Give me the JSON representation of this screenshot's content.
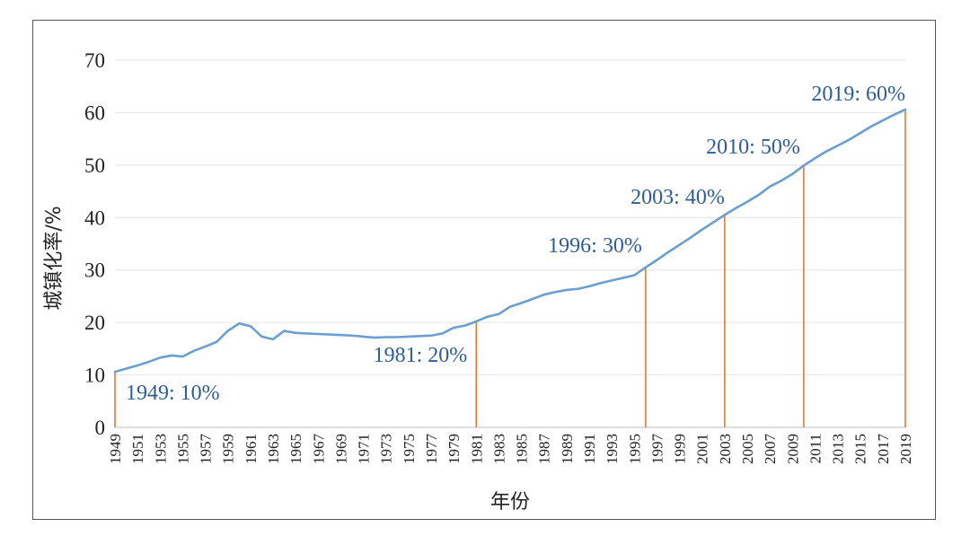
{
  "chart_data": {
    "type": "line",
    "xlabel": "年份",
    "ylabel": "城镇化率/%",
    "ylim": [
      0,
      70
    ],
    "yticks": [
      "0",
      "10",
      "20",
      "30",
      "40",
      "50",
      "60",
      "70"
    ],
    "xtick_labels": [
      "1949",
      "1951",
      "1953",
      "1955",
      "1957",
      "1959",
      "1961",
      "1963",
      "1965",
      "1967",
      "1969",
      "1971",
      "1973",
      "1975",
      "1977",
      "1979",
      "1981",
      "1983",
      "1985",
      "1987",
      "1989",
      "1991",
      "1993",
      "1995",
      "1997",
      "1999",
      "2001",
      "2003",
      "2005",
      "2007",
      "2009",
      "2011",
      "2013",
      "2015",
      "2017",
      "2019"
    ],
    "grid": "horizontal",
    "colors": {
      "line": "#6a9fd0",
      "marker": "#e07b39",
      "annotation": "#2e5c96",
      "grid": "#e3e3e3"
    },
    "series": [
      {
        "x": [
          1949,
          1950,
          1951,
          1952,
          1953,
          1954,
          1955,
          1956,
          1957,
          1958,
          1959,
          1960,
          1961,
          1962,
          1963,
          1964,
          1965,
          1966,
          1967,
          1968,
          1969,
          1970,
          1971,
          1972,
          1973,
          1974,
          1975,
          1976,
          1977,
          1978,
          1979,
          1980,
          1981,
          1982,
          1983,
          1984,
          1985,
          1986,
          1987,
          1988,
          1989,
          1990,
          1991,
          1992,
          1993,
          1994,
          1995,
          1996,
          1997,
          1998,
          1999,
          2000,
          2001,
          2002,
          2003,
          2004,
          2005,
          2006,
          2007,
          2008,
          2009,
          2010,
          2011,
          2012,
          2013,
          2014,
          2015,
          2016,
          2017,
          2018,
          2019
        ],
        "values": [
          10.6,
          11.2,
          11.8,
          12.5,
          13.3,
          13.7,
          13.5,
          14.6,
          15.4,
          16.3,
          18.4,
          19.8,
          19.3,
          17.3,
          16.8,
          18.4,
          18.0,
          17.9,
          17.8,
          17.7,
          17.6,
          17.5,
          17.3,
          17.1,
          17.2,
          17.2,
          17.3,
          17.4,
          17.5,
          17.9,
          19.0,
          19.4,
          20.2,
          21.1,
          21.6,
          23.0,
          23.7,
          24.5,
          25.3,
          25.8,
          26.2,
          26.4,
          26.9,
          27.5,
          28.0,
          28.5,
          29.0,
          30.5,
          31.9,
          33.4,
          34.8,
          36.2,
          37.7,
          39.1,
          40.5,
          41.8,
          43.0,
          44.3,
          45.9,
          47.0,
          48.3,
          49.9,
          51.3,
          52.6,
          53.7,
          54.8,
          56.1,
          57.4,
          58.5,
          59.6,
          60.6
        ]
      }
    ],
    "markers": [
      {
        "x": 1949,
        "value": 10,
        "label": "1949: 10%"
      },
      {
        "x": 1981,
        "value": 20,
        "label": "1981: 20%"
      },
      {
        "x": 1996,
        "value": 30,
        "label": "1996: 30%"
      },
      {
        "x": 2003,
        "value": 40,
        "label": "2003: 40%"
      },
      {
        "x": 2010,
        "value": 50,
        "label": "2010: 50%"
      },
      {
        "x": 2019,
        "value": 60,
        "label": "2019: 60%"
      }
    ]
  }
}
